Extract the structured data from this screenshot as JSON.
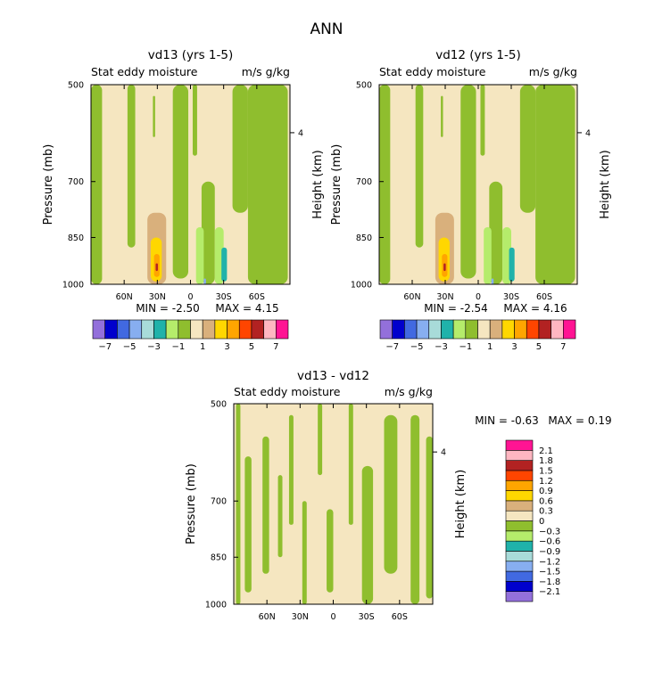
{
  "figure": {
    "title": "ANN",
    "field_label": "Stat eddy moisture",
    "units": "m/s g/kg",
    "y_axis_label": "Pressure (mb)",
    "right_axis_label": "Height (km)"
  },
  "colors": {
    "positive": [
      "#f5e6c0",
      "#d9b07c",
      "#ffd700",
      "#ffa500",
      "#ff4500",
      "#b22222",
      "#ffb6c1",
      "#ff1493"
    ],
    "negative": [
      "#8fbe2e",
      "#b5ec6b",
      "#20b2aa",
      "#a8dbd9",
      "#87aef0",
      "#4169e1",
      "#0000cd",
      "#9370db"
    ]
  },
  "chart_data": [
    {
      "type": "heatmap",
      "name": "panel-vd13",
      "title": "vd13 (yrs 1-5)",
      "subtitle_left": "Stat eddy moisture",
      "subtitle_right": "m/s g/kg",
      "ylabel": "Pressure (mb)",
      "y2label": "Height (km)",
      "xlim": [
        -90,
        90
      ],
      "x_ticks": [
        60,
        30,
        0,
        -30,
        -60
      ],
      "x_tick_labels": [
        "60N",
        "30N",
        "0",
        "30S",
        "60S"
      ],
      "y_ticks": [
        500,
        700,
        850,
        1000
      ],
      "y_tick_labels": [
        "500",
        "700",
        "850",
        "1000"
      ],
      "y2_ticks": [
        4
      ],
      "y2_tick_labels": [
        "4"
      ],
      "ylim": [
        1000,
        500
      ],
      "log_pressure": true,
      "min_label": "MIN =   -2.50",
      "max_label": "MAX =    4.15",
      "min": -2.5,
      "max": 4.15,
      "legend": {
        "orientation": "horizontal",
        "levels": [
          -8,
          -7,
          -6,
          -5,
          -4,
          -3,
          -2,
          -1,
          0,
          1,
          2,
          3,
          4,
          5,
          6,
          7,
          8
        ],
        "labels": [
          "-7",
          "-5",
          "-3",
          "-1",
          "1",
          "3",
          "5",
          "7"
        ],
        "colors": [
          "#9370db",
          "#0000cd",
          "#4169e1",
          "#87aef0",
          "#a8dbd9",
          "#20b2aa",
          "#b5ec6b",
          "#8fbe2e",
          "#f5e6c0",
          "#d9b07c",
          "#ffd700",
          "#ffa500",
          "#ff4500",
          "#b22222",
          "#ffb6c1",
          "#ff1493"
        ]
      }
    },
    {
      "type": "heatmap",
      "name": "panel-vd12",
      "title": "vd12 (yrs 1-5)",
      "subtitle_left": "Stat eddy moisture",
      "subtitle_right": "m/s g/kg",
      "ylabel": "Pressure (mb)",
      "y2label": "Height (km)",
      "xlim": [
        -90,
        90
      ],
      "x_ticks": [
        60,
        30,
        0,
        -30,
        -60
      ],
      "x_tick_labels": [
        "60N",
        "30N",
        "0",
        "30S",
        "60S"
      ],
      "y_ticks": [
        500,
        700,
        850,
        1000
      ],
      "y_tick_labels": [
        "500",
        "700",
        "850",
        "1000"
      ],
      "y2_ticks": [
        4
      ],
      "y2_tick_labels": [
        "4"
      ],
      "ylim": [
        1000,
        500
      ],
      "log_pressure": true,
      "min_label": "MIN =   -2.54",
      "max_label": "MAX =    4.16",
      "min": -2.54,
      "max": 4.16,
      "legend": {
        "orientation": "horizontal",
        "levels": [
          -8,
          -7,
          -6,
          -5,
          -4,
          -3,
          -2,
          -1,
          0,
          1,
          2,
          3,
          4,
          5,
          6,
          7,
          8
        ],
        "labels": [
          "-7",
          "-5",
          "-3",
          "-1",
          "1",
          "3",
          "5",
          "7"
        ],
        "colors": [
          "#9370db",
          "#0000cd",
          "#4169e1",
          "#87aef0",
          "#a8dbd9",
          "#20b2aa",
          "#b5ec6b",
          "#8fbe2e",
          "#f5e6c0",
          "#d9b07c",
          "#ffd700",
          "#ffa500",
          "#ff4500",
          "#b22222",
          "#ffb6c1",
          "#ff1493"
        ]
      }
    },
    {
      "type": "heatmap",
      "name": "panel-diff",
      "title": "vd13 - vd12",
      "subtitle_left": "Stat eddy moisture",
      "subtitle_right": "m/s g/kg",
      "ylabel": "Pressure (mb)",
      "y2label": "Height (km)",
      "xlim": [
        -90,
        90
      ],
      "x_ticks": [
        60,
        30,
        0,
        -30,
        -60
      ],
      "x_tick_labels": [
        "60N",
        "30N",
        "0",
        "30S",
        "60S"
      ],
      "y_ticks": [
        500,
        700,
        850,
        1000
      ],
      "y_tick_labels": [
        "500",
        "700",
        "850",
        "1000"
      ],
      "y2_ticks": [
        4
      ],
      "y2_tick_labels": [
        "4"
      ],
      "ylim": [
        1000,
        500
      ],
      "log_pressure": true,
      "min_label": "MIN =   -0.63",
      "max_label": "MAX =    0.19",
      "min": -0.63,
      "max": 0.19,
      "legend": {
        "orientation": "vertical",
        "levels": [
          -2.4,
          -2.1,
          -1.8,
          -1.5,
          -1.2,
          -0.9,
          -0.6,
          -0.3,
          0,
          0.3,
          0.6,
          0.9,
          1.2,
          1.5,
          1.8,
          2.1,
          2.4
        ],
        "labels": [
          "2.1",
          "1.8",
          "1.5",
          "1.2",
          "0.9",
          "0.6",
          "0.3",
          "0",
          "−0.3",
          "−0.6",
          "−0.9",
          "−1.2",
          "−1.5",
          "−1.8",
          "−2.1"
        ],
        "colors": [
          "#9370db",
          "#0000cd",
          "#4169e1",
          "#87aef0",
          "#a8dbd9",
          "#20b2aa",
          "#b5ec6b",
          "#8fbe2e",
          "#f5e6c0",
          "#d9b07c",
          "#ffd700",
          "#ffa500",
          "#ff4500",
          "#b22222",
          "#ffb6c1",
          "#ff1493"
        ]
      }
    }
  ]
}
